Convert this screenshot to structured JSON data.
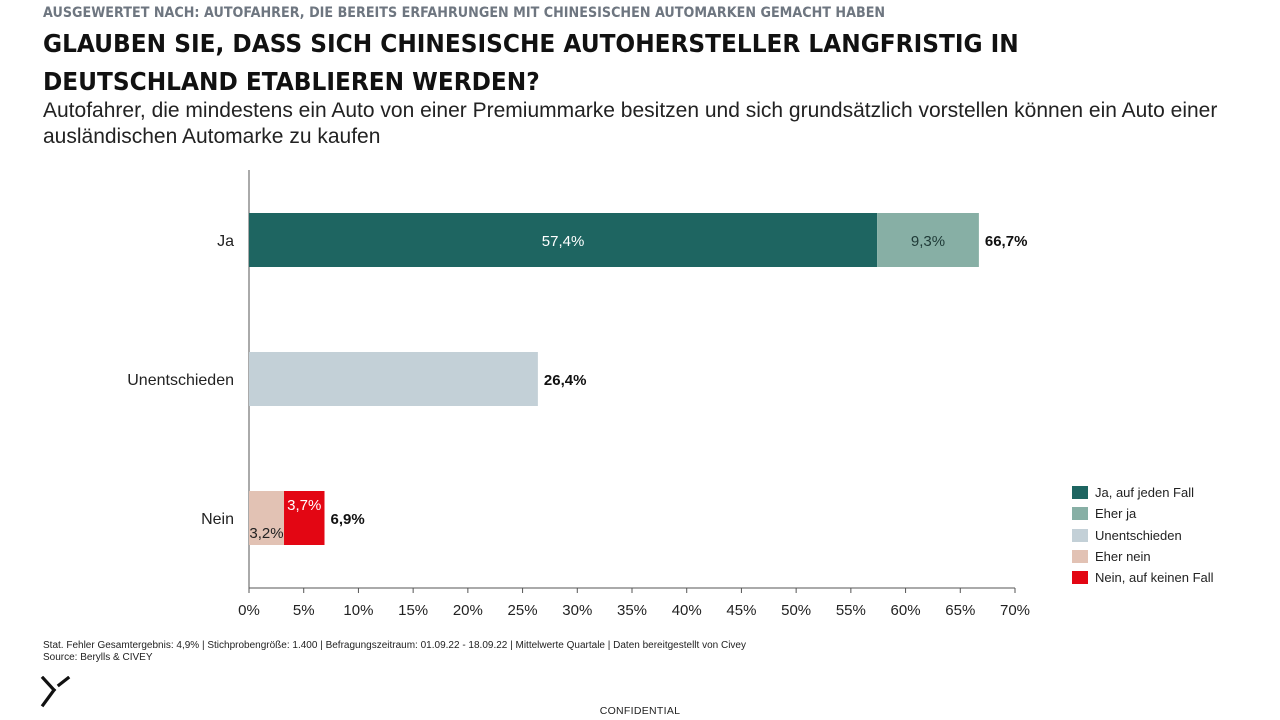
{
  "header": {
    "kicker": "AUSGEWERTET NACH: AUTOFAHRER, DIE BEREITS ERFAHRUNGEN MIT CHINESISCHEN AUTOMARKEN GEMACHT HABEN",
    "title": "GLAUBEN SIE, DASS SICH CHINESISCHE AUTOHERSTELLER LANGFRISTIG IN DEUTSCHLAND ETABLIEREN WERDEN?",
    "subtitle": "Autofahrer, die mindestens ein Auto von einer Premiummarke besitzen und sich grundsätzlich vorstellen können ein Auto einer ausländischen Automarke zu kaufen"
  },
  "chart_data": {
    "type": "bar",
    "orientation": "horizontal",
    "stacked": true,
    "categories": [
      "Ja",
      "Unentschieden",
      "Nein"
    ],
    "series": [
      {
        "name": "Ja, auf jeden Fall",
        "color": "#1e6561",
        "values": [
          57.4,
          0,
          0
        ],
        "labels": [
          "57,4%",
          "",
          ""
        ]
      },
      {
        "name": "Eher ja",
        "color": "#87afa5",
        "values": [
          9.3,
          0,
          0
        ],
        "labels": [
          "9,3%",
          "",
          ""
        ]
      },
      {
        "name": "Unentschieden",
        "color": "#c3d0d7",
        "values": [
          0,
          26.4,
          0
        ],
        "labels": [
          "",
          "",
          ""
        ]
      },
      {
        "name": "Eher nein",
        "color": "#e2c2b4",
        "values": [
          0,
          0,
          3.2
        ],
        "labels": [
          "",
          "",
          "3,2%"
        ]
      },
      {
        "name": "Nein, auf keinen Fall",
        "color": "#e30613",
        "values": [
          0,
          0,
          3.7
        ],
        "labels": [
          "",
          "",
          "3,7%"
        ]
      }
    ],
    "totals": [
      "66,7%",
      "26,4%",
      "6,9%"
    ],
    "xlim": [
      0,
      70
    ],
    "xticks": [
      "0%",
      "5%",
      "10%",
      "15%",
      "20%",
      "25%",
      "30%",
      "35%",
      "40%",
      "45%",
      "50%",
      "55%",
      "60%",
      "65%",
      "70%"
    ],
    "grid": false,
    "legend_position": "bottom-right"
  },
  "footer": {
    "note": "Stat. Fehler Gesamtergebnis: 4,9% | Stichprobengröße: 1.400 | Befragungszeitraum: 01.09.22 - 18.09.22 | Mittelwerte Quartale | Daten bereitgestellt von Civey",
    "source": "Source: Berylls & CIVEY",
    "confidential": "CONFIDENTIAL"
  }
}
